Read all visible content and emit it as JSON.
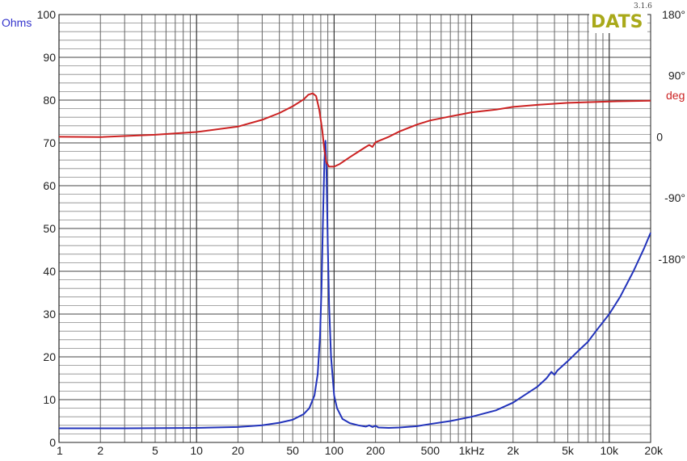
{
  "logo": {
    "text": "DATS",
    "version": "3.1.6",
    "color": "#a9a91a"
  },
  "chart_data": {
    "type": "line",
    "x_axis": {
      "scale": "log",
      "range": [
        1,
        20000
      ],
      "unit": "Hz",
      "tick_labels": [
        {
          "value": 1,
          "label": "1"
        },
        {
          "value": 2,
          "label": "2"
        },
        {
          "value": 5,
          "label": "5"
        },
        {
          "value": 10,
          "label": "10"
        },
        {
          "value": 20,
          "label": "20"
        },
        {
          "value": 50,
          "label": "50"
        },
        {
          "value": 100,
          "label": "100"
        },
        {
          "value": 200,
          "label": "200"
        },
        {
          "value": 500,
          "label": "500"
        },
        {
          "value": 1000,
          "label": "1kHz"
        },
        {
          "value": 2000,
          "label": "2k"
        },
        {
          "value": 5000,
          "label": "5k"
        },
        {
          "value": 10000,
          "label": "10k"
        },
        {
          "value": 20000,
          "label": "20k"
        }
      ]
    },
    "y_left": {
      "label": "Ohms",
      "color": "#3333cc",
      "range": [
        0,
        100
      ],
      "ticks": [
        0,
        10,
        20,
        30,
        40,
        50,
        60,
        70,
        80,
        90,
        100
      ],
      "minor_step": 2
    },
    "y_right": {
      "unit": "deg",
      "color": "#cc2222",
      "range": [
        -450,
        180
      ],
      "tick_labels": [
        {
          "value": 180,
          "label": "180°"
        },
        {
          "value": 90,
          "label": "90°"
        },
        {
          "value": 0,
          "label": "0"
        },
        {
          "value": -90,
          "label": "-90°"
        },
        {
          "value": -180,
          "label": "-180°"
        }
      ]
    },
    "grid": true,
    "series": [
      {
        "quantity": "impedance",
        "axis": "left",
        "color": "#2233bb",
        "points": [
          [
            1,
            3.3
          ],
          [
            3,
            3.3
          ],
          [
            10,
            3.4
          ],
          [
            20,
            3.6
          ],
          [
            30,
            4.0
          ],
          [
            40,
            4.6
          ],
          [
            50,
            5.3
          ],
          [
            60,
            6.6
          ],
          [
            66,
            8.0
          ],
          [
            72,
            11.0
          ],
          [
            76,
            16.0
          ],
          [
            79,
            25.0
          ],
          [
            81,
            36.0
          ],
          [
            83,
            52.0
          ],
          [
            85,
            66.0
          ],
          [
            86.5,
            70.5
          ],
          [
            88,
            64.0
          ],
          [
            90,
            46.0
          ],
          [
            92,
            32.0
          ],
          [
            95,
            20.0
          ],
          [
            100,
            11.0
          ],
          [
            105,
            8.0
          ],
          [
            115,
            5.5
          ],
          [
            130,
            4.5
          ],
          [
            150,
            4.0
          ],
          [
            170,
            3.7
          ],
          [
            180,
            4.0
          ],
          [
            190,
            3.6
          ],
          [
            200,
            3.9
          ],
          [
            210,
            3.5
          ],
          [
            250,
            3.4
          ],
          [
            300,
            3.5
          ],
          [
            400,
            3.8
          ],
          [
            500,
            4.3
          ],
          [
            700,
            5.0
          ],
          [
            1000,
            6.0
          ],
          [
            1500,
            7.5
          ],
          [
            2000,
            9.3
          ],
          [
            3000,
            13.0
          ],
          [
            3500,
            15.0
          ],
          [
            3800,
            16.5
          ],
          [
            4000,
            15.8
          ],
          [
            4200,
            16.8
          ],
          [
            5000,
            19.0
          ],
          [
            6000,
            21.5
          ],
          [
            7000,
            23.5
          ],
          [
            8000,
            26.0
          ],
          [
            10000,
            30.0
          ],
          [
            12000,
            34.0
          ],
          [
            15000,
            40.0
          ],
          [
            18000,
            45.5
          ],
          [
            20000,
            49.0
          ]
        ]
      },
      {
        "quantity": "phase",
        "axis": "right",
        "color": "#cc2222",
        "points": [
          [
            1,
            0.0
          ],
          [
            2,
            -0.4
          ],
          [
            5,
            3.0
          ],
          [
            10,
            7.0
          ],
          [
            20,
            15.0
          ],
          [
            30,
            25.0
          ],
          [
            40,
            35.0
          ],
          [
            50,
            45.0
          ],
          [
            60,
            55.0
          ],
          [
            65,
            62.0
          ],
          [
            70,
            64.0
          ],
          [
            74,
            60.0
          ],
          [
            78,
            40.0
          ],
          [
            82,
            10.0
          ],
          [
            85,
            -20.0
          ],
          [
            88,
            -38.0
          ],
          [
            92,
            -44.0
          ],
          [
            100,
            -44.0
          ],
          [
            110,
            -40.0
          ],
          [
            130,
            -30.0
          ],
          [
            150,
            -22.0
          ],
          [
            170,
            -15.0
          ],
          [
            180,
            -12.0
          ],
          [
            190,
            -15.0
          ],
          [
            200,
            -8.0
          ],
          [
            250,
            0.0
          ],
          [
            300,
            8.0
          ],
          [
            400,
            18.0
          ],
          [
            500,
            24.0
          ],
          [
            700,
            30.0
          ],
          [
            1000,
            36.0
          ],
          [
            1500,
            40.0
          ],
          [
            2000,
            44.0
          ],
          [
            3000,
            47.0
          ],
          [
            5000,
            50.0
          ],
          [
            10000,
            52.0
          ],
          [
            20000,
            53.0
          ]
        ]
      }
    ]
  }
}
